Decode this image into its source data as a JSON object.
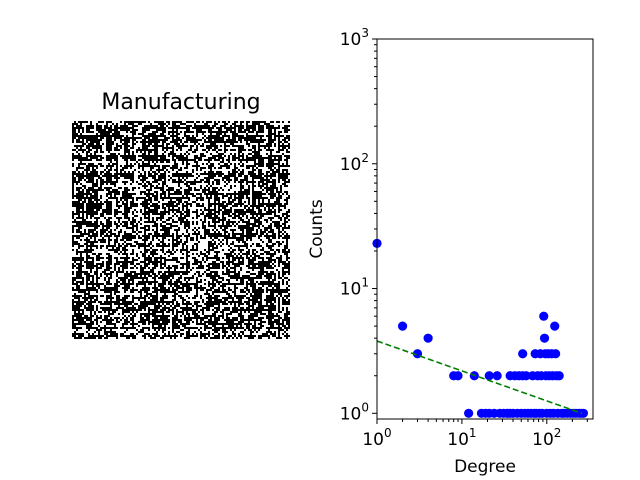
{
  "chart_data": [
    {
      "type": "heatmap",
      "title": "Manufacturing",
      "colors": {
        "filled": "#000000",
        "empty": "#ffffff"
      }
    },
    {
      "type": "scatter",
      "title": "",
      "xlabel": "Degree",
      "ylabel": "Counts",
      "xscale": "log",
      "yscale": "log",
      "xlim": [
        1,
        350
      ],
      "ylim": [
        0.9,
        1000
      ],
      "xticks": [
        {
          "value": 1,
          "label": "10^0"
        },
        {
          "value": 10,
          "label": "10^1"
        },
        {
          "value": 100,
          "label": "10^2"
        }
      ],
      "yticks": [
        {
          "value": 1,
          "label": "10^0"
        },
        {
          "value": 10,
          "label": "10^1"
        },
        {
          "value": 100,
          "label": "10^2"
        },
        {
          "value": 1000,
          "label": "10^3"
        }
      ],
      "grid": false,
      "series": [
        {
          "kind": "points",
          "color": "#0000ff",
          "points": [
            [
              1,
              23
            ],
            [
              2,
              5
            ],
            [
              3,
              3
            ],
            [
              4,
              4
            ],
            [
              8,
              2
            ],
            [
              9,
              2
            ],
            [
              12,
              1
            ],
            [
              14,
              2
            ],
            [
              17,
              1
            ],
            [
              19,
              1
            ],
            [
              21,
              1
            ],
            [
              21,
              2
            ],
            [
              24,
              1
            ],
            [
              26,
              2
            ],
            [
              28,
              1
            ],
            [
              31,
              1
            ],
            [
              34,
              1
            ],
            [
              37,
              1
            ],
            [
              37,
              2
            ],
            [
              40,
              1
            ],
            [
              42,
              2
            ],
            [
              45,
              1
            ],
            [
              47,
              2
            ],
            [
              50,
              1
            ],
            [
              52,
              3
            ],
            [
              52,
              2
            ],
            [
              55,
              1
            ],
            [
              57,
              2
            ],
            [
              60,
              1
            ],
            [
              65,
              1
            ],
            [
              68,
              2
            ],
            [
              71,
              1
            ],
            [
              73,
              3
            ],
            [
              75,
              1
            ],
            [
              78,
              2
            ],
            [
              82,
              1
            ],
            [
              84,
              3
            ],
            [
              86,
              2
            ],
            [
              88,
              1
            ],
            [
              92,
              6
            ],
            [
              94,
              4
            ],
            [
              96,
              3
            ],
            [
              98,
              2
            ],
            [
              100,
              1
            ],
            [
              104,
              3
            ],
            [
              107,
              2
            ],
            [
              110,
              1
            ],
            [
              114,
              3
            ],
            [
              117,
              2
            ],
            [
              120,
              1
            ],
            [
              124,
              5
            ],
            [
              127,
              3
            ],
            [
              130,
              2
            ],
            [
              135,
              1
            ],
            [
              140,
              2
            ],
            [
              150,
              1
            ],
            [
              160,
              1
            ],
            [
              175,
              1
            ],
            [
              190,
              1
            ],
            [
              205,
              1
            ],
            [
              220,
              1
            ],
            [
              240,
              1
            ],
            [
              255,
              1
            ],
            [
              270,
              1
            ]
          ]
        },
        {
          "kind": "line",
          "style": "dashed",
          "color": "#008000",
          "points": [
            [
              1,
              3.8
            ],
            [
              260,
              1.0
            ]
          ]
        }
      ]
    }
  ]
}
